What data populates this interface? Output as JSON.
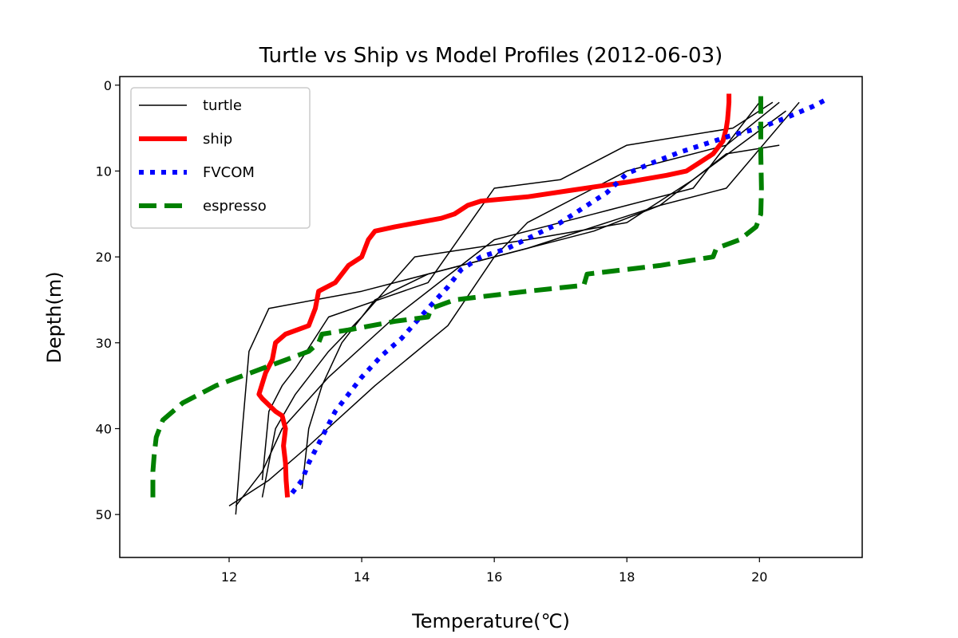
{
  "chart_data": {
    "type": "line",
    "title": "Turtle vs Ship vs Model Profiles (2012-06-03)",
    "xlabel": "Temperature(℃)",
    "ylabel": "Depth(m)",
    "xlim": [
      10.35,
      21.55
    ],
    "ylim": [
      55,
      -1
    ],
    "y_inverted": true,
    "xticks": [
      12,
      14,
      16,
      18,
      20
    ],
    "yticks": [
      0,
      10,
      20,
      30,
      40,
      50
    ],
    "grid": false,
    "legend_position": "upper left",
    "series": [
      {
        "name": "turtle",
        "color": "#000000",
        "style": "solid",
        "lw": 1.5,
        "profiles": [
          {
            "x": [
              12.0,
              12.6,
              13.2,
              14.2,
              15.3,
              16.0,
              16.5,
              17.5,
              18.0,
              19.5,
              20.3
            ],
            "y": [
              49,
              46,
              42,
              35,
              28,
              20,
              16,
              12,
              10,
              7,
              2
            ]
          },
          {
            "x": [
              12.1,
              12.5,
              12.8,
              13.5,
              14.5,
              15.5,
              16.0,
              17.5,
              19.0,
              20.0
            ],
            "y": [
              49,
              45,
              40,
              34,
              27,
              21,
              18,
              15,
              12,
              2
            ]
          },
          {
            "x": [
              12.1,
              12.2,
              12.3,
              12.6,
              14.0,
              15.5,
              17.5,
              18.5,
              19.5,
              20.6
            ],
            "y": [
              50,
              40,
              31,
              26,
              24,
              21,
              17,
              14,
              12,
              2
            ]
          },
          {
            "x": [
              12.5,
              12.6,
              12.8,
              13.0,
              13.5,
              15.0,
              16.0,
              17.0,
              18.0,
              19.6,
              20.2
            ],
            "y": [
              46,
              38,
              35,
              33,
              27,
              23,
              12,
              11,
              7,
              5,
              2
            ]
          },
          {
            "x": [
              12.5,
              12.7,
              13.0,
              13.5,
              14.0,
              14.8,
              16.5,
              18.0,
              19.0,
              20.4
            ],
            "y": [
              48,
              40,
              36,
              31,
              27,
              20,
              18,
              16,
              11,
              3
            ]
          },
          {
            "x": [
              13.1,
              13.2,
              13.4,
              13.7,
              14.2,
              15.0,
              16.5,
              18.5,
              19.5,
              20.3
            ],
            "y": [
              47,
              40,
              35,
              30,
              25,
              22,
              19,
              14,
              8,
              7
            ]
          }
        ]
      },
      {
        "name": "ship",
        "color": "#ff0000",
        "style": "solid",
        "lw": 6,
        "x": [
          12.88,
          12.86,
          12.85,
          12.82,
          12.85,
          12.8,
          12.7,
          12.5,
          12.45,
          12.55,
          12.65,
          12.7,
          12.85,
          13.2,
          13.3,
          13.35,
          13.6,
          13.8,
          14.0,
          14.05,
          14.1,
          14.2,
          14.5,
          15.2,
          15.4,
          15.6,
          15.8,
          16.5,
          17.2,
          18.0,
          18.6,
          18.9,
          19.1,
          19.3,
          19.45,
          19.5,
          19.52,
          19.53,
          19.54,
          19.54
        ],
        "y": [
          48,
          46,
          44,
          42,
          40,
          38.5,
          38,
          36.5,
          36,
          33.5,
          32,
          30,
          29,
          28,
          26,
          24,
          23,
          21,
          20,
          19,
          18,
          17,
          16.5,
          15.5,
          15,
          14,
          13.5,
          13,
          12.2,
          11.3,
          10.5,
          10,
          9,
          8,
          6.5,
          5,
          4,
          3,
          2,
          1
        ]
      },
      {
        "name": "FVCOM",
        "color": "#0000ff",
        "style": "dotted",
        "lw": 6,
        "x": [
          12.95,
          13.1,
          13.2,
          13.4,
          13.6,
          13.8,
          14.0,
          14.3,
          14.6,
          15.0,
          15.3,
          15.5,
          15.8,
          16.2,
          16.6,
          17.0,
          17.4,
          17.7,
          18.0,
          18.4,
          18.8,
          19.2,
          19.6,
          20.0,
          20.4,
          20.8,
          21.05
        ],
        "y": [
          47.5,
          46,
          44,
          41,
          38,
          36,
          34,
          31.5,
          29.5,
          26,
          23.5,
          21.5,
          20,
          19,
          17.5,
          16,
          14,
          12.5,
          10.3,
          9,
          7.8,
          6.8,
          5.8,
          5,
          3.8,
          2.5,
          1.5
        ]
      },
      {
        "name": "espresso",
        "color": "#008000",
        "style": "dashed",
        "lw": 6,
        "x": [
          10.85,
          10.85,
          10.87,
          10.9,
          10.95,
          11.0,
          11.3,
          11.8,
          12.5,
          13.2,
          13.35,
          13.4,
          13.8,
          14.5,
          15.0,
          15.05,
          15.4,
          16.5,
          17.35,
          17.4,
          18.5,
          19.3,
          19.35,
          19.7,
          19.95,
          20.02,
          20.03,
          20.02,
          20.02
        ],
        "y": [
          48,
          45,
          43,
          41,
          40,
          39,
          37,
          35,
          33,
          31,
          30,
          29,
          28.5,
          27.5,
          27,
          26,
          25,
          24,
          23.3,
          22,
          21,
          20,
          19,
          18,
          16.5,
          15,
          12,
          8,
          1
        ]
      }
    ]
  }
}
